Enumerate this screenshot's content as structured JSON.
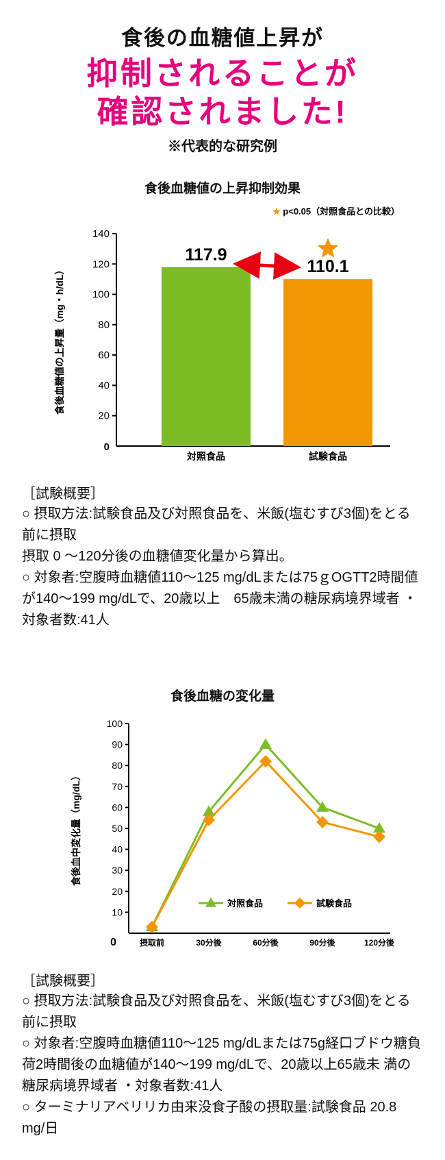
{
  "header": {
    "top": "食後の血糖値上昇が",
    "main": "抑制されることが\n確認されました!",
    "note": "※代表的な研究例"
  },
  "bar_chart": {
    "title": "食後血糖値の上昇抑制効果",
    "type": "bar",
    "ylabel": "食後血糖値の上昇量（mg・h/dL）",
    "ylim": [
      0,
      140
    ],
    "ytick_step": 20,
    "categories": [
      "対照食品",
      "試験食品"
    ],
    "values": [
      117.9,
      110.1
    ],
    "value_labels": [
      "117.9",
      "110.1"
    ],
    "bar_colors": [
      "#7dbb27",
      "#f29600"
    ],
    "cat_bold": [
      false,
      true
    ],
    "star_note": "★ p<0.05（対照食品との比較）",
    "star_color": "#f29600",
    "arrow_color": "#e60012",
    "axis_color": "#000",
    "tick_fontsize": 15,
    "ylabel_fontsize": 14
  },
  "desc1": {
    "hdr": "［試験概要］",
    "body": "○ 摂取方法:試験食品及び対照食品を、米飯(塩むすび3個)をとる前に摂取\n摂取 0 〜120分後の血糖値変化量から算出。\n○ 対象者:空腹時血糖値110〜125 mg/dLまたは75ｇOGTT2時間値が140〜199 mg/dLで、20歳以上　65歳未満の糖尿病境界域者 ・対象者数:41人"
  },
  "line_chart": {
    "title": "食後血糖の変化量",
    "type": "line",
    "ylabel": "食後血中変化量（mg/dL）",
    "ylim": [
      0,
      100
    ],
    "ytick_step": 10,
    "x_labels": [
      "摂取前",
      "30分後",
      "60分後",
      "90分後",
      "120分後"
    ],
    "series": [
      {
        "name": "対照食品",
        "color": "#7dbb27",
        "marker": "triangle",
        "values": [
          3,
          58,
          90,
          60,
          50
        ]
      },
      {
        "name": "試験食品",
        "color": "#f29600",
        "marker": "diamond",
        "values": [
          3,
          54,
          82,
          53,
          46
        ]
      }
    ],
    "line_width": 3,
    "marker_size": 9,
    "axis_color": "#000"
  },
  "desc2": {
    "hdr": "［試験概要］",
    "body": "○ 摂取方法:試験食品及び対照食品を、米飯(塩むすび3個)をとる前に摂取\n○ 対象者:空腹時血糖値110〜125 mg/dLまたは75g経口ブドウ糖負荷2時間後の血糖値が140〜199 mg/dLで、20歳以上65歳未 満の糖尿病境界域者 ・対象者数:41人\n○ ターミナリアベリリカ由来没食子酸の摂取量:試験食品 20.8 mg/日"
  }
}
